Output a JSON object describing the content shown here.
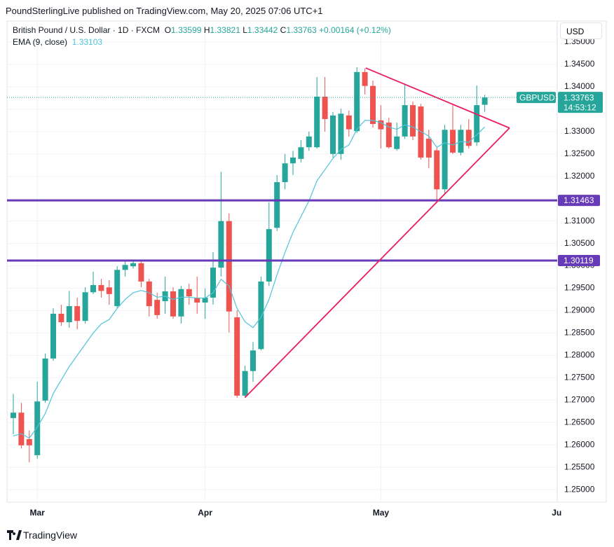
{
  "header": {
    "text": "PoundSterlingLive published on TradingView.com, May 20, 2025 07:06 UTC+1"
  },
  "footer": {
    "brand": "TradingView"
  },
  "currency": "USD",
  "chart_data": {
    "type": "candlestick",
    "title": "British Pound / U.S. Dollar · 1D · FXCM",
    "legend_labels": {
      "open": "O",
      "high": "H",
      "low": "L",
      "close": "C"
    },
    "change_text": "+0.00164 (+0.12%)",
    "countdown": "14:53:12",
    "categories": [
      null,
      null,
      null,
      "Mar",
      null,
      null,
      null,
      null,
      null,
      null,
      null,
      null,
      null,
      null,
      null,
      null,
      null,
      null,
      null,
      null,
      null,
      null,
      null,
      null,
      "Apr",
      null,
      null,
      null,
      null,
      null,
      null,
      null,
      null,
      null,
      null,
      null,
      null,
      null,
      null,
      null,
      null,
      null,
      null,
      null,
      null,
      null,
      "May",
      null,
      null,
      null,
      null,
      null,
      null,
      null,
      null,
      null,
      null,
      null,
      null,
      null,
      null,
      null,
      null,
      null,
      null,
      null,
      null,
      null,
      "Ju"
    ],
    "series": [
      {
        "name": "GBPUSD",
        "up_color": "#26a69a",
        "down_color": "#ef5350",
        "open": [
          1.266,
          1.2672,
          1.2613,
          1.2577,
          1.2699,
          1.2793,
          1.2893,
          1.2874,
          1.291,
          1.2877,
          1.2941,
          1.2957,
          1.2952,
          1.291,
          1.2991,
          1.2999,
          1.3006,
          1.2965,
          1.2924,
          1.2921,
          1.2943,
          1.2887,
          1.2948,
          1.2929,
          1.2918,
          1.2929,
          1.2996,
          1.31,
          1.2885,
          1.271,
          1.2765,
          1.2814,
          1.2965,
          1.3085,
          1.3187,
          1.3229,
          1.3239,
          1.3265,
          1.3265,
          1.3378,
          1.325,
          1.325,
          1.3336,
          1.3301,
          1.3433,
          1.3402,
          1.3325,
          1.332,
          1.3261,
          1.3289,
          1.3359,
          1.3356,
          1.3284,
          1.3258,
          1.3171,
          1.3304,
          1.3253,
          1.3304,
          1.3276,
          1.33599,
          null,
          null,
          null,
          null,
          null,
          null,
          null,
          null,
          null
        ],
        "high": [
          1.2714,
          1.2694,
          1.2632,
          1.2741,
          1.2804,
          1.2905,
          1.2913,
          1.2944,
          1.2929,
          1.2952,
          1.2987,
          1.2971,
          1.2968,
          1.2999,
          1.3011,
          1.3011,
          1.3011,
          1.2971,
          1.294,
          1.2976,
          1.2952,
          1.2955,
          1.296,
          1.2976,
          1.2949,
          1.3031,
          1.321,
          1.3117,
          1.2901,
          1.2777,
          1.283,
          1.2976,
          1.3142,
          1.3203,
          1.325,
          1.3257,
          1.3281,
          1.33,
          1.3422,
          1.3422,
          1.3344,
          1.3351,
          1.3347,
          1.3444,
          1.3441,
          1.3414,
          1.3359,
          1.3331,
          1.332,
          1.3406,
          1.3367,
          1.3362,
          1.3304,
          1.3265,
          1.3315,
          1.3359,
          1.3315,
          1.3328,
          1.3403,
          1.33821,
          null,
          null,
          null,
          null,
          null,
          null,
          null,
          null,
          null
        ],
        "low": [
          1.2624,
          1.2592,
          1.2561,
          1.2569,
          1.2694,
          1.2788,
          1.2866,
          1.2862,
          1.2858,
          1.2871,
          1.2937,
          1.2929,
          1.2913,
          1.2905,
          1.2976,
          1.2994,
          1.2952,
          1.2887,
          1.2882,
          1.2893,
          1.2882,
          1.2871,
          1.2913,
          1.2893,
          1.2882,
          1.2913,
          1.2976,
          1.2851,
          1.2705,
          1.2705,
          1.2741,
          1.2811,
          1.2955,
          1.3078,
          1.3171,
          1.3203,
          1.3231,
          1.3257,
          1.3262,
          1.33,
          1.3242,
          1.3237,
          1.3289,
          1.3297,
          1.3383,
          1.3309,
          1.3262,
          1.3262,
          1.3257,
          1.3284,
          1.3281,
          1.3237,
          1.3218,
          1.3148,
          1.3159,
          1.325,
          1.3247,
          1.3262,
          1.3268,
          1.33442,
          null,
          null,
          null,
          null,
          null,
          null,
          null,
          null,
          null
        ],
        "close": [
          1.2672,
          1.2599,
          1.2599,
          1.2697,
          1.2793,
          1.2893,
          1.2874,
          1.291,
          1.2877,
          1.2941,
          1.2957,
          1.2944,
          1.2937,
          1.2991,
          1.3002,
          1.3006,
          1.2965,
          1.291,
          1.289,
          1.2943,
          1.2887,
          1.2948,
          1.2932,
          1.2918,
          1.2929,
          1.2996,
          1.31,
          1.2898,
          1.271,
          1.2765,
          1.2811,
          1.2965,
          1.3082,
          1.3187,
          1.3229,
          1.3242,
          1.3265,
          1.3289,
          1.3378,
          1.3328,
          1.3336,
          1.334,
          1.3305,
          1.3433,
          1.3402,
          1.3317,
          1.3305,
          1.3265,
          1.3289,
          1.3359,
          1.3289,
          1.3242,
          1.3242,
          1.3171,
          1.3304,
          1.3253,
          1.3304,
          1.3268,
          1.3359,
          1.33763,
          null,
          null,
          null,
          null,
          null,
          null,
          null,
          null,
          null
        ]
      }
    ],
    "ema": {
      "name": "EMA (9, close)",
      "color": "#4fc3d9",
      "values": [
        1.262,
        1.2625,
        1.2615,
        1.264,
        1.267,
        1.2715,
        1.2745,
        1.2775,
        1.28,
        1.2825,
        1.285,
        1.287,
        1.288,
        1.2905,
        1.2925,
        1.294,
        1.2945,
        1.294,
        1.293,
        1.2932,
        1.2925,
        1.293,
        1.293,
        1.2928,
        1.2928,
        1.294,
        1.297,
        1.2955,
        1.2905,
        1.2875,
        1.2862,
        1.2885,
        1.2925,
        1.298,
        1.303,
        1.3075,
        1.311,
        1.3145,
        1.319,
        1.3215,
        1.324,
        1.326,
        1.327,
        1.3305,
        1.3325,
        1.3325,
        1.332,
        1.331,
        1.3305,
        1.3315,
        1.331,
        1.33,
        1.329,
        1.3265,
        1.3275,
        1.327,
        1.3278,
        1.3276,
        1.3293,
        1.33103,
        null,
        null,
        null,
        null,
        null,
        null,
        null,
        null,
        null
      ]
    },
    "levels": [
      {
        "value": 1.31463,
        "color": "#673ab7"
      },
      {
        "value": 1.30119,
        "color": "#673ab7"
      }
    ],
    "trendlines": [
      {
        "color": "#e91e63",
        "points": [
          {
            "x": 29,
            "y": 1.2706
          },
          {
            "x": 62.1,
            "y": 1.3308
          }
        ]
      },
      {
        "color": "#e91e63",
        "points": [
          {
            "x": 44.1,
            "y": 1.3442
          },
          {
            "x": 62.1,
            "y": 1.3308
          }
        ]
      }
    ],
    "ylim": [
      1.2472,
      1.3547
    ],
    "yticks": [
      {
        "value": 1.25,
        "label": "1.25000"
      },
      {
        "value": 1.255,
        "label": "1.25500"
      },
      {
        "value": 1.26,
        "label": "1.26000"
      },
      {
        "value": 1.265,
        "label": "1.26500"
      },
      {
        "value": 1.27,
        "label": "1.27000"
      },
      {
        "value": 1.275,
        "label": "1.27500"
      },
      {
        "value": 1.28,
        "label": "1.28000"
      },
      {
        "value": 1.285,
        "label": "1.28500"
      },
      {
        "value": 1.29,
        "label": "1.29000"
      },
      {
        "value": 1.295,
        "label": "1.29500"
      },
      {
        "value": 1.3,
        "label": "1.30000"
      },
      {
        "value": 1.305,
        "label": "1.30500"
      },
      {
        "value": 1.31,
        "label": "1.31000"
      },
      {
        "value": 1.315,
        "label": "1.31500"
      },
      {
        "value": 1.32,
        "label": "1.32000"
      },
      {
        "value": 1.325,
        "label": "1.32500"
      },
      {
        "value": 1.33,
        "label": "1.33000"
      },
      {
        "value": 1.335,
        "label": "1.33500"
      },
      {
        "value": 1.34,
        "label": "1.34000"
      },
      {
        "value": 1.345,
        "label": "1.34500"
      },
      {
        "value": 1.35,
        "label": "1.35000"
      }
    ],
    "grid": true
  }
}
